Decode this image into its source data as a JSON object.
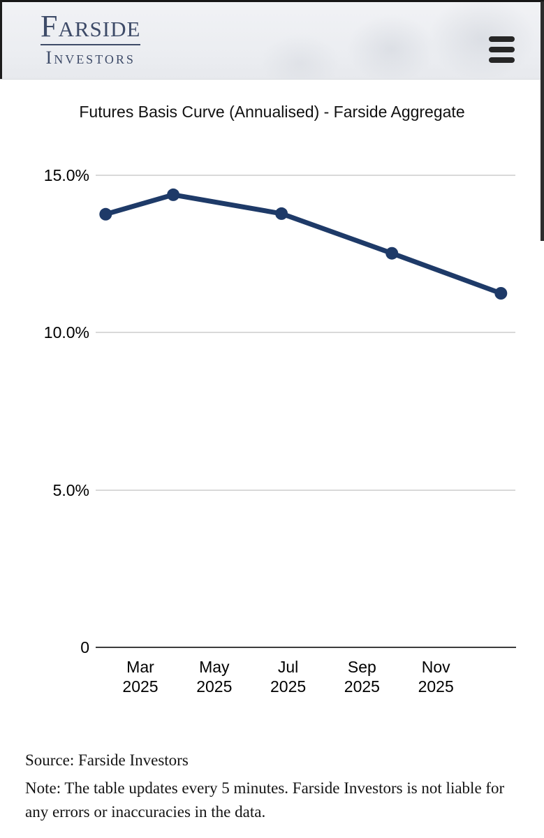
{
  "header": {
    "logo_name": "Farside",
    "logo_sub": "Investors",
    "menu_icon": "hamburger-icon"
  },
  "chart_data": {
    "type": "line",
    "title": "Futures Basis Curve (Annualised) - Farside Aggregate",
    "xlabel": "",
    "ylabel": "",
    "ylim": [
      0,
      16
    ],
    "grid": true,
    "legend_position": "none",
    "line_color": "#1e3a68",
    "point_color": "#1e3a68",
    "grid_color": "#d9d9d9",
    "axis_color": "#3c3c3c",
    "y_ticks": [
      {
        "label": "0",
        "value": 0
      },
      {
        "label": "5.0%",
        "value": 5
      },
      {
        "label": "10.0%",
        "value": 10
      },
      {
        "label": "15.0%",
        "value": 15
      }
    ],
    "x_ticks": [
      {
        "month": "Mar",
        "year": "2025",
        "m": 2
      },
      {
        "month": "May",
        "year": "2025",
        "m": 4
      },
      {
        "month": "Jul",
        "year": "2025",
        "m": 6
      },
      {
        "month": "Sep",
        "year": "2025",
        "m": 8
      },
      {
        "month": "Nov",
        "year": "2025",
        "m": 10
      }
    ],
    "series": [
      {
        "name": "Farside Aggregate",
        "points": [
          {
            "period": "Feb 2025",
            "m": 1.06,
            "value": 13.76
          },
          {
            "period": "Mar 2025",
            "m": 2.89,
            "value": 14.38
          },
          {
            "period": "Jun 2025",
            "m": 5.82,
            "value": 13.78
          },
          {
            "period": "Sep 2025",
            "m": 8.81,
            "value": 12.52
          },
          {
            "period": "Dec 2025",
            "m": 11.76,
            "value": 11.25
          }
        ]
      }
    ]
  },
  "footer": {
    "source": "Source: Farside Investors",
    "note": "Note: The table updates every 5 minutes. Farside Investors is not liable for any errors or inaccuracies in the data."
  }
}
